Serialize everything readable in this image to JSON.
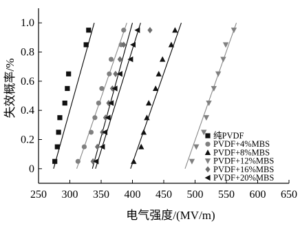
{
  "chart_data": {
    "type": "scatter",
    "title": "",
    "xlabel": "电气强度/(MV/m)",
    "ylabel": "失效概率/%",
    "xlim": [
      250,
      650
    ],
    "ylim": [
      -0.1,
      1.1
    ],
    "xticks": [
      250,
      300,
      350,
      400,
      450,
      500,
      550,
      600,
      650
    ],
    "yticks": [
      0,
      0.2,
      0.4,
      0.6,
      0.8,
      1.0
    ],
    "xtick_labels": [
      "250",
      "300",
      "350",
      "400",
      "450",
      "500",
      "550",
      "600",
      "650"
    ],
    "ytick_labels": [
      "0",
      "0.2",
      "0.4",
      "0.6",
      "0.8",
      "1.0"
    ],
    "grid": false,
    "legend_position": "bottom-right",
    "series": [
      {
        "name": "纯PVDF",
        "marker": "square",
        "color": "#111111",
        "line_color": "#000000",
        "x": [
          276,
          280,
          282,
          284,
          292,
          296,
          298,
          326,
          330
        ],
        "y": [
          0.05,
          0.15,
          0.25,
          0.35,
          0.45,
          0.55,
          0.65,
          0.85,
          0.95
        ],
        "fit": {
          "x": [
            274,
            339
          ],
          "y": [
            0.0,
            1.0
          ]
        }
      },
      {
        "name": "PVDF+4%MBS",
        "marker": "circle",
        "color": "#808080",
        "line_color": "#888888",
        "x": [
          313,
          323,
          334,
          340,
          346,
          351,
          363,
          366,
          382,
          386
        ],
        "y": [
          0.05,
          0.15,
          0.25,
          0.35,
          0.45,
          0.55,
          0.65,
          0.75,
          0.85,
          0.95
        ],
        "fit": {
          "x": [
            311,
            391
          ],
          "y": [
            0.0,
            1.0
          ]
        }
      },
      {
        "name": "PVDF+8%MBS",
        "marker": "triangle-up",
        "color": "#111111",
        "line_color": "#000000",
        "x": [
          402,
          414,
          418,
          423,
          426,
          437,
          442,
          448,
          462,
          468
        ],
        "y": [
          0.05,
          0.15,
          0.25,
          0.35,
          0.45,
          0.55,
          0.65,
          0.75,
          0.85,
          0.95
        ],
        "fit": {
          "x": [
            397,
            478
          ],
          "y": [
            0.0,
            1.0
          ]
        }
      },
      {
        "name": "PVDF+12%MBS",
        "marker": "triangle-down",
        "color": "#808080",
        "line_color": "#888888",
        "x": [
          495,
          502,
          514,
          518,
          522,
          530,
          537,
          545,
          549,
          562
        ],
        "y": [
          0.05,
          0.15,
          0.25,
          0.35,
          0.45,
          0.55,
          0.65,
          0.75,
          0.85,
          0.95
        ],
        "fit": {
          "x": [
            484,
            566
          ],
          "y": [
            0.0,
            1.0
          ]
        }
      },
      {
        "name": "PVDF+16%MBS",
        "marker": "diamond",
        "color": "#6e6e6e",
        "line_color": "#000000",
        "x": [
          337,
          344,
          352,
          357,
          362,
          368,
          373,
          380,
          386,
          428
        ],
        "y": [
          0.05,
          0.15,
          0.25,
          0.35,
          0.45,
          0.55,
          0.65,
          0.75,
          0.85,
          0.95
        ],
        "fit": {
          "x": [
            336,
            400
          ],
          "y": [
            0.0,
            1.0
          ]
        }
      },
      {
        "name": "PVDF+20%MBS",
        "marker": "triangle-left",
        "color": "#111111",
        "line_color": "#000000",
        "x": [
          342,
          352,
          356,
          361,
          366,
          372,
          380,
          397,
          401,
          408
        ],
        "y": [
          0.05,
          0.15,
          0.25,
          0.35,
          0.45,
          0.55,
          0.65,
          0.75,
          0.85,
          0.95
        ],
        "fit": {
          "x": [
            341,
            413
          ],
          "y": [
            0.0,
            1.0
          ]
        }
      }
    ]
  }
}
